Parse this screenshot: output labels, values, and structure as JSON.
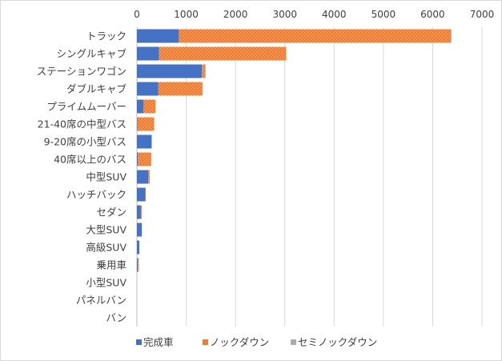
{
  "chart_data": {
    "type": "bar",
    "orientation": "horizontal",
    "stacked": true,
    "title": "",
    "xlabel": "",
    "ylabel": "",
    "xlim": [
      0,
      7000
    ],
    "xticks": [
      "0",
      "1000",
      "2000",
      "3000",
      "4000",
      "5000",
      "6000",
      "7000"
    ],
    "x_axis_position": "top",
    "grid": "vertical",
    "legend_position": "bottom",
    "categories": [
      "トラック",
      "シングルキャブ",
      "ステーションワゴン",
      "ダブルキャブ",
      "プライムムーバー",
      "21-40席の中型バス",
      "9-20席の小型バス",
      "40席以上のバス",
      "中型SUV",
      "ハッチバック",
      "セダン",
      "大型SUV",
      "高級SUV",
      "乗用車",
      "小型SUV",
      "パネルバン",
      "バン"
    ],
    "series": [
      {
        "name": "完成車",
        "color": "#4472c4",
        "values": [
          850,
          450,
          1320,
          430,
          130,
          10,
          300,
          20,
          230,
          170,
          80,
          100,
          50,
          20,
          0,
          0,
          0
        ]
      },
      {
        "name": "ノックダウン",
        "color": "#ed7d31",
        "values": [
          5520,
          2580,
          60,
          900,
          250,
          340,
          0,
          270,
          30,
          10,
          20,
          0,
          0,
          20,
          0,
          0,
          0
        ]
      },
      {
        "name": "セミノックダウン",
        "color": "#a5a5a5",
        "values": [
          10,
          0,
          15,
          0,
          0,
          0,
          0,
          0,
          0,
          0,
          0,
          0,
          0,
          0,
          0,
          0,
          0
        ]
      }
    ]
  }
}
